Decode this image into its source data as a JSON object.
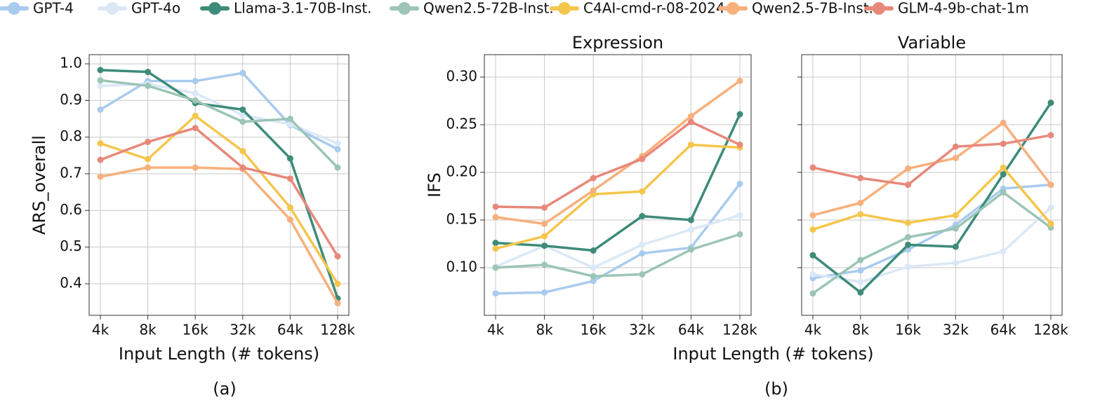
{
  "chart_data": [
    {
      "type": "line",
      "caption": "(a)",
      "ylabel": "ARS_overall",
      "xlabel": "Input Length (# tokens)",
      "categories": [
        "4k",
        "8k",
        "16k",
        "32k",
        "64k",
        "128k"
      ],
      "ylim": [
        0.314,
        1.025
      ],
      "yticks": [
        0.4,
        0.5,
        0.6,
        0.7,
        0.8,
        0.9,
        {
          "value": 1,
          "label": "1.0"
        }
      ],
      "grid": true,
      "series": [
        {
          "name": "GPT-4",
          "color": "#a9cbee",
          "values": [
            0.875,
            0.953,
            0.953,
            0.975,
            0.833,
            0.767
          ]
        },
        {
          "name": "GPT-4o",
          "color": "#dbe8f6",
          "values": [
            0.94,
            0.945,
            0.92,
            0.86,
            0.835,
            0.783
          ]
        },
        {
          "name": "Llama-3.1-70B-Inst.",
          "color": "#3d8b79",
          "values": [
            0.983,
            0.978,
            0.893,
            0.875,
            0.742,
            0.36
          ]
        },
        {
          "name": "Qwen2.5-72B-Inst.",
          "color": "#9cc5b6",
          "values": [
            0.955,
            0.94,
            0.9,
            0.842,
            0.85,
            0.717
          ]
        },
        {
          "name": "C4AI-cmd-r-08-2024",
          "color": "#f5c64c",
          "values": [
            0.783,
            0.74,
            0.858,
            0.762,
            0.608,
            0.4
          ]
        },
        {
          "name": "Qwen2.5-7B-Inst.",
          "color": "#f8b07c",
          "values": [
            0.692,
            0.717,
            0.717,
            0.713,
            0.575,
            0.347
          ]
        },
        {
          "name": "GLM-4-9b-chat-1m",
          "color": "#e8887b",
          "values": [
            0.738,
            0.787,
            0.825,
            0.717,
            0.687,
            0.475
          ]
        }
      ]
    },
    {
      "type": "line",
      "title": "Expression",
      "caption": "(b)",
      "ylabel": "IFS",
      "xlabel": "Input Length (# tokens)",
      "categories": [
        "4k",
        "8k",
        "16k",
        "32k",
        "64k",
        "128k"
      ],
      "ylim": [
        0.05,
        0.3235
      ],
      "yticks": [
        {
          "value": 0.1,
          "label": "0.10"
        },
        0.15,
        {
          "value": 0.2,
          "label": "0.20"
        },
        0.25,
        {
          "value": 0.3,
          "label": "0.30"
        }
      ],
      "grid": true,
      "series": [
        {
          "color": "#a9cbee",
          "values": [
            0.073,
            0.074,
            0.086,
            0.115,
            0.121,
            0.188
          ]
        },
        {
          "color": "#dbe8f6",
          "values": [
            0.101,
            0.123,
            0.1,
            0.124,
            0.14,
            0.155
          ]
        },
        {
          "color": "#3d8b79",
          "values": [
            0.126,
            0.123,
            0.118,
            0.154,
            0.15,
            0.261
          ]
        },
        {
          "color": "#9cc5b6",
          "values": [
            0.1,
            0.103,
            0.091,
            0.093,
            0.119,
            0.135
          ]
        },
        {
          "color": "#f5c64c",
          "values": [
            0.12,
            0.133,
            0.177,
            0.18,
            0.229,
            0.226
          ]
        },
        {
          "color": "#f8b07c",
          "values": [
            0.153,
            0.146,
            0.181,
            0.217,
            0.259,
            0.296
          ]
        },
        {
          "color": "#e8887b",
          "values": [
            0.164,
            0.163,
            0.194,
            0.214,
            0.253,
            0.229
          ]
        }
      ]
    },
    {
      "type": "line",
      "title": "Variable",
      "categories": [
        "4k",
        "8k",
        "16k",
        "32k",
        "64k",
        "128k"
      ],
      "ylim": [
        0.05,
        0.3235
      ],
      "yticks": [
        0.1,
        0.15,
        0.2,
        0.25,
        0.3
      ],
      "ytick_labels": false,
      "grid": true,
      "series": [
        {
          "color": "#a9cbee",
          "values": [
            0.089,
            0.097,
            0.119,
            0.145,
            0.183,
            0.187
          ]
        },
        {
          "color": "#dbe8f6",
          "values": [
            0.093,
            0.085,
            0.101,
            0.105,
            0.117,
            0.163
          ]
        },
        {
          "color": "#3d8b79",
          "values": [
            0.113,
            0.074,
            0.124,
            0.122,
            0.198,
            0.273
          ]
        },
        {
          "color": "#9cc5b6",
          "values": [
            0.073,
            0.108,
            0.132,
            0.141,
            0.179,
            0.142
          ]
        },
        {
          "color": "#f5c64c",
          "values": [
            0.14,
            0.156,
            0.147,
            0.155,
            0.205,
            0.146
          ]
        },
        {
          "color": "#f8b07c",
          "values": [
            0.155,
            0.168,
            0.204,
            0.215,
            0.252,
            0.187
          ]
        },
        {
          "color": "#e8887b",
          "values": [
            0.205,
            0.194,
            0.187,
            0.227,
            0.23,
            0.239
          ]
        }
      ]
    }
  ]
}
